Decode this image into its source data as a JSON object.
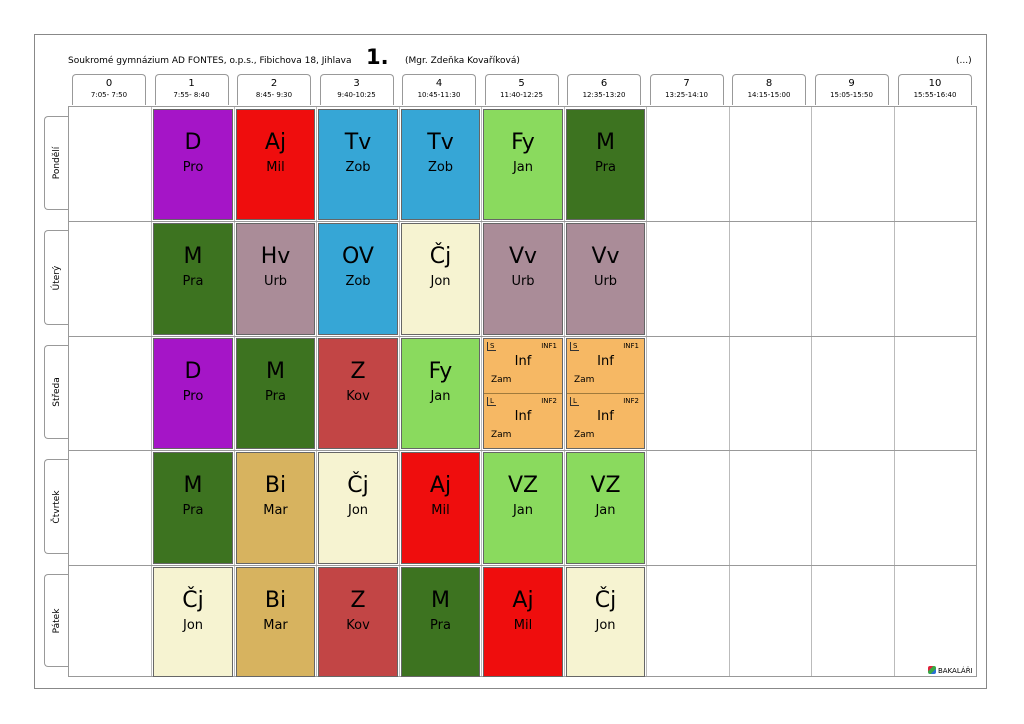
{
  "header": {
    "school": "Soukromé gymnázium AD FONTES, o.p.s., Fibichova 18, Jihlava",
    "class": "1.",
    "teacher": "(Mgr. Zdeňka Kovaříková)",
    "more": "(...)"
  },
  "periods": [
    {
      "num": "0",
      "time": "7:05- 7:50"
    },
    {
      "num": "1",
      "time": "7:55- 8:40"
    },
    {
      "num": "2",
      "time": "8:45- 9:30"
    },
    {
      "num": "3",
      "time": "9:40-10:25"
    },
    {
      "num": "4",
      "time": "10:45-11:30"
    },
    {
      "num": "5",
      "time": "11:40-12:25"
    },
    {
      "num": "6",
      "time": "12:35-13:20"
    },
    {
      "num": "7",
      "time": "13:25-14:10"
    },
    {
      "num": "8",
      "time": "14:15-15:00"
    },
    {
      "num": "9",
      "time": "15:05-15:50"
    },
    {
      "num": "10",
      "time": "15:55-16:40"
    }
  ],
  "days": [
    "Pondělí",
    "Úterý",
    "Středa",
    "Čtvrtek",
    "Pátek"
  ],
  "colors": {
    "D": "#a515c7",
    "Aj": "#ef0d0d",
    "Tv": "#36a6d6",
    "Fy": "#8ada5e",
    "M": "#3d7320",
    "Hv": "#aa8c98",
    "OV": "#36a6d6",
    "Čj": "#f6f3d1",
    "Vv": "#aa8c98",
    "Z": "#c24545",
    "Bi": "#d7b35f",
    "VZ": "#8ada5e",
    "Inf": "#f6b864"
  },
  "schedule": [
    {
      "day": 0,
      "lessons": [
        {
          "p": 1,
          "subject": "D",
          "teacher": "Pro"
        },
        {
          "p": 2,
          "subject": "Aj",
          "teacher": "Mil"
        },
        {
          "p": 3,
          "subject": "Tv",
          "teacher": "Zob"
        },
        {
          "p": 4,
          "subject": "Tv",
          "teacher": "Zob"
        },
        {
          "p": 5,
          "subject": "Fy",
          "teacher": "Jan"
        },
        {
          "p": 6,
          "subject": "M",
          "teacher": "Pra"
        }
      ]
    },
    {
      "day": 1,
      "lessons": [
        {
          "p": 1,
          "subject": "M",
          "teacher": "Pra"
        },
        {
          "p": 2,
          "subject": "Hv",
          "teacher": "Urb"
        },
        {
          "p": 3,
          "subject": "OV",
          "teacher": "Zob"
        },
        {
          "p": 4,
          "subject": "Čj",
          "teacher": "Jon"
        },
        {
          "p": 5,
          "subject": "Vv",
          "teacher": "Urb"
        },
        {
          "p": 6,
          "subject": "Vv",
          "teacher": "Urb"
        }
      ]
    },
    {
      "day": 2,
      "lessons": [
        {
          "p": 1,
          "subject": "D",
          "teacher": "Pro"
        },
        {
          "p": 2,
          "subject": "M",
          "teacher": "Pra"
        },
        {
          "p": 3,
          "subject": "Z",
          "teacher": "Kov"
        },
        {
          "p": 4,
          "subject": "Fy",
          "teacher": "Jan"
        },
        {
          "p": 5,
          "split": [
            {
              "tag": "S",
              "group": "INF1",
              "subject": "Inf",
              "teacher": "Zam"
            },
            {
              "tag": "L",
              "group": "INF2",
              "subject": "Inf",
              "teacher": "Zam"
            }
          ]
        },
        {
          "p": 6,
          "split": [
            {
              "tag": "S",
              "group": "INF1",
              "subject": "Inf",
              "teacher": "Zam"
            },
            {
              "tag": "L",
              "group": "INF2",
              "subject": "Inf",
              "teacher": "Zam"
            }
          ]
        }
      ]
    },
    {
      "day": 3,
      "lessons": [
        {
          "p": 1,
          "subject": "M",
          "teacher": "Pra"
        },
        {
          "p": 2,
          "subject": "Bi",
          "teacher": "Mar"
        },
        {
          "p": 3,
          "subject": "Čj",
          "teacher": "Jon"
        },
        {
          "p": 4,
          "subject": "Aj",
          "teacher": "Mil"
        },
        {
          "p": 5,
          "subject": "VZ",
          "teacher": "Jan"
        },
        {
          "p": 6,
          "subject": "VZ",
          "teacher": "Jan"
        }
      ]
    },
    {
      "day": 4,
      "lessons": [
        {
          "p": 1,
          "subject": "Čj",
          "teacher": "Jon"
        },
        {
          "p": 2,
          "subject": "Bi",
          "teacher": "Mar"
        },
        {
          "p": 3,
          "subject": "Z",
          "teacher": "Kov"
        },
        {
          "p": 4,
          "subject": "M",
          "teacher": "Pra"
        },
        {
          "p": 5,
          "subject": "Aj",
          "teacher": "Mil"
        },
        {
          "p": 6,
          "subject": "Čj",
          "teacher": "Jon"
        }
      ]
    }
  ],
  "footer": {
    "logo_text": "BAKALÁŘI",
    "logo_icon": "bakalari-logo-icon"
  }
}
